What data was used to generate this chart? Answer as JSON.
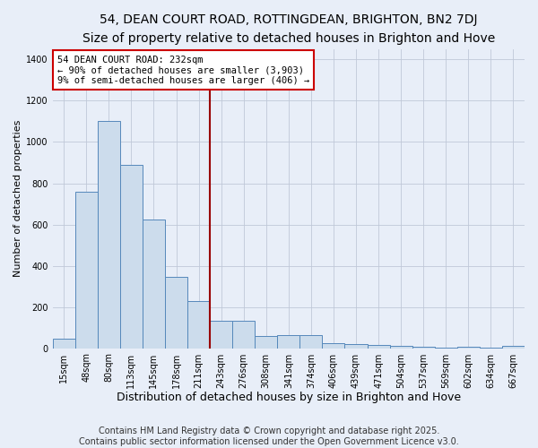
{
  "title": "54, DEAN COURT ROAD, ROTTINGDEAN, BRIGHTON, BN2 7DJ",
  "subtitle": "Size of property relative to detached houses in Brighton and Hove",
  "xlabel": "Distribution of detached houses by size in Brighton and Hove",
  "ylabel": "Number of detached properties",
  "bar_color": "#ccdcec",
  "bar_edge_color": "#5588bb",
  "background_color": "#e8eef8",
  "grid_color": "#c0c8d8",
  "bin_labels": [
    "15sqm",
    "48sqm",
    "80sqm",
    "113sqm",
    "145sqm",
    "178sqm",
    "211sqm",
    "243sqm",
    "276sqm",
    "308sqm",
    "341sqm",
    "374sqm",
    "406sqm",
    "439sqm",
    "471sqm",
    "504sqm",
    "537sqm",
    "569sqm",
    "602sqm",
    "634sqm",
    "667sqm"
  ],
  "bar_values": [
    45,
    760,
    1100,
    890,
    625,
    345,
    230,
    135,
    135,
    60,
    65,
    65,
    25,
    18,
    15,
    10,
    5,
    2,
    8,
    2,
    10
  ],
  "property_label": "54 DEAN COURT ROAD: 232sqm",
  "annotation_line1": "← 90% of detached houses are smaller (3,903)",
  "annotation_line2": "9% of semi-detached houses are larger (406) →",
  "vline_bin_index": 7,
  "vline_color": "#990000",
  "annotation_box_color": "#ffffff",
  "annotation_box_edge": "#cc0000",
  "footer_line1": "Contains HM Land Registry data © Crown copyright and database right 2025.",
  "footer_line2": "Contains public sector information licensed under the Open Government Licence v3.0.",
  "ylim": [
    0,
    1450
  ],
  "title_fontsize": 10,
  "subtitle_fontsize": 9,
  "xlabel_fontsize": 9,
  "ylabel_fontsize": 8,
  "tick_fontsize": 7,
  "annotation_fontsize": 7.5,
  "footer_fontsize": 7
}
